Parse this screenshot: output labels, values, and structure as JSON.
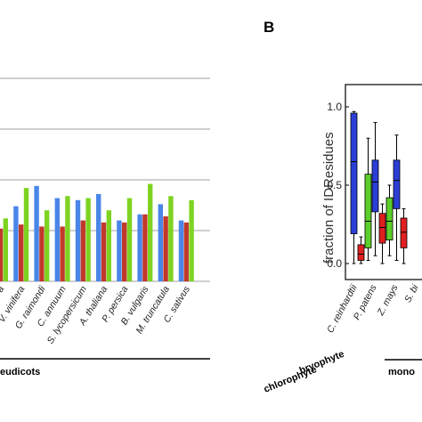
{
  "chart_data": [
    {
      "type": "bar",
      "title": "",
      "xlabel": "",
      "ylabel": "",
      "ylim": [
        0,
        1
      ],
      "grid": true,
      "categories": [
        "a",
        "V. vinifera",
        "G. raimondi",
        "C. annuum",
        "S. lycopersicum",
        "A. thaliana",
        "P. persica",
        "B. vulgaris",
        "M. truncatula",
        "C. sativus"
      ],
      "series": [
        {
          "color": "#4a86e8",
          "values": [
            0.0,
            0.37,
            0.47,
            0.41,
            0.4,
            0.43,
            0.3,
            0.33,
            0.38,
            0.3
          ]
        },
        {
          "color": "#c0392b",
          "values": [
            0.26,
            0.28,
            0.27,
            0.27,
            0.3,
            0.29,
            0.29,
            0.33,
            0.32,
            0.29
          ]
        },
        {
          "color": "#7ed321",
          "values": [
            0.31,
            0.46,
            0.35,
            0.42,
            0.41,
            0.35,
            0.41,
            0.48,
            0.42,
            0.4
          ]
        }
      ],
      "group_label": "eudicots"
    },
    {
      "type": "box",
      "panel_label": "B",
      "ylabel": "fraction of IDResidues",
      "ylim": [
        0,
        1.0
      ],
      "yticks": [
        "0.0",
        "0.5",
        "1.0"
      ],
      "categories": [
        "C. reinhardtii",
        "P. patens",
        "Z. mays",
        "S. bi"
      ],
      "group_labels": [
        "chlorophyte",
        "bryophyte",
        "mono"
      ],
      "boxes": [
        {
          "category": "C. reinhardtii",
          "color": "#2b3fd6",
          "whisker": [
            0.0,
            0.97
          ],
          "q1": 0.19,
          "median": 0.65,
          "q3": 0.96
        },
        {
          "category": "C. reinhardtii",
          "color": "#e02020",
          "whisker": [
            0.0,
            0.17
          ],
          "q1": 0.02,
          "median": 0.06,
          "q3": 0.12
        },
        {
          "category": "C. reinhardtii",
          "color": "#5ccf2a",
          "whisker": [
            0.02,
            0.8
          ],
          "q1": 0.1,
          "median": 0.27,
          "q3": 0.57
        },
        {
          "category": "P. patens",
          "color": "#2b3fd6",
          "whisker": [
            0.05,
            0.9
          ],
          "q1": 0.33,
          "median": 0.52,
          "q3": 0.66
        },
        {
          "category": "P. patens",
          "color": "#e02020",
          "whisker": [
            0.0,
            0.38
          ],
          "q1": 0.13,
          "median": 0.23,
          "q3": 0.32
        },
        {
          "category": "P. patens",
          "color": "#5ccf2a",
          "whisker": [
            0.05,
            0.5
          ],
          "q1": 0.15,
          "median": 0.27,
          "q3": 0.42
        },
        {
          "category": "Z. mays",
          "color": "#2b3fd6",
          "whisker": [
            0.02,
            0.82
          ],
          "q1": 0.35,
          "median": 0.53,
          "q3": 0.66
        },
        {
          "category": "Z. mays",
          "color": "#e02020",
          "whisker": [
            0.0,
            0.35
          ],
          "q1": 0.1,
          "median": 0.2,
          "q3": 0.29
        }
      ]
    }
  ]
}
